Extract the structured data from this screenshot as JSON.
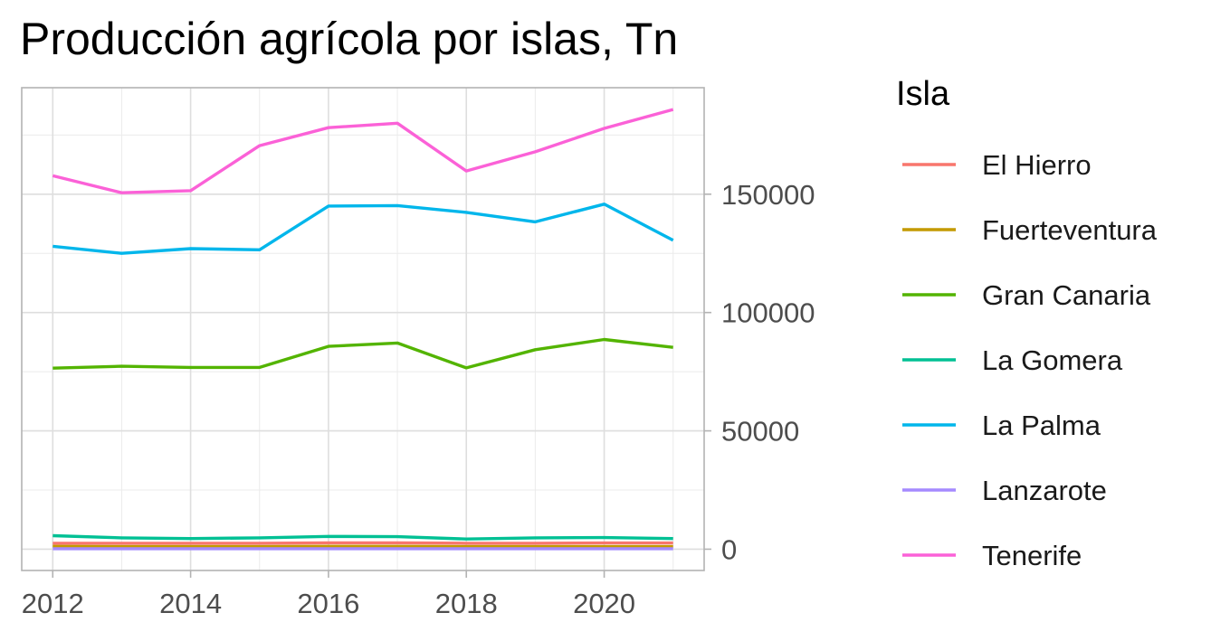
{
  "chart_data": {
    "type": "line",
    "title": "Producción agrícola por islas, Tn",
    "xlabel": "",
    "ylabel": "",
    "x": [
      2012,
      2013,
      2014,
      2015,
      2016,
      2017,
      2018,
      2019,
      2020,
      2021
    ],
    "xticks": [
      "2012",
      "2014",
      "2016",
      "2018",
      "2020"
    ],
    "yticks": [
      "0",
      "50000",
      "100000",
      "150000"
    ],
    "xlim": [
      2011.55,
      2021.45
    ],
    "ylim": [
      -9000,
      195000
    ],
    "y_axis_position": "right",
    "grid": true,
    "legend": {
      "title": "Isla",
      "position": "right"
    },
    "series": [
      {
        "name": "El Hierro",
        "color": "#F8766D",
        "values": [
          2500,
          2500,
          2500,
          2500,
          2700,
          2700,
          2500,
          2500,
          2600,
          2600
        ]
      },
      {
        "name": "Fuerteventura",
        "color": "#C49A00",
        "values": [
          1200,
          1100,
          1100,
          1100,
          1200,
          1200,
          1100,
          1100,
          1100,
          1100
        ]
      },
      {
        "name": "Gran Canaria",
        "color": "#53B400",
        "values": [
          76500,
          77300,
          76800,
          76800,
          85700,
          87100,
          76600,
          84300,
          88600,
          85300
        ]
      },
      {
        "name": "La Gomera",
        "color": "#00C094",
        "values": [
          5700,
          4800,
          4500,
          4800,
          5400,
          5300,
          4300,
          4800,
          4900,
          4500
        ]
      },
      {
        "name": "La Palma",
        "color": "#00B6EB",
        "values": [
          128000,
          125000,
          127000,
          126500,
          145000,
          145200,
          142300,
          138300,
          145800,
          130500
        ]
      },
      {
        "name": "Lanzarote",
        "color": "#A58AFF",
        "values": [
          200,
          200,
          200,
          200,
          200,
          200,
          200,
          200,
          200,
          200
        ]
      },
      {
        "name": "Tenerife",
        "color": "#FB61D7",
        "values": [
          157800,
          150600,
          151500,
          170500,
          178100,
          180000,
          159800,
          167900,
          177800,
          185800
        ]
      }
    ]
  }
}
